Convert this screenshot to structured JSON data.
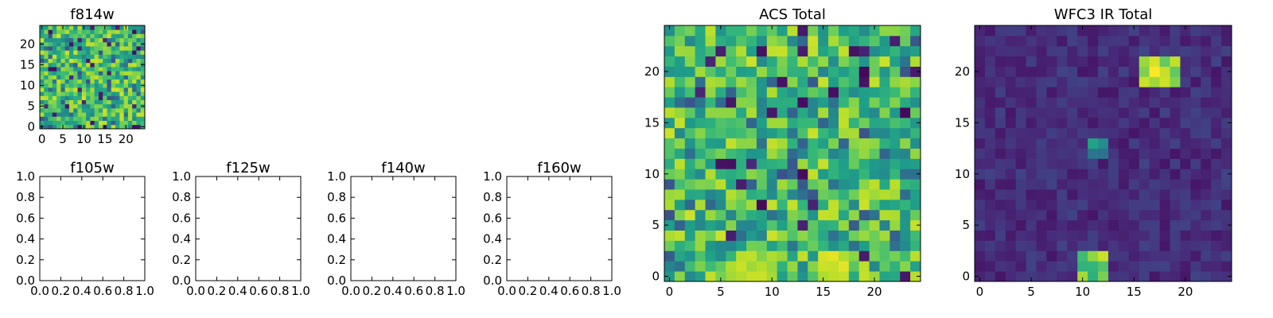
{
  "chart_data": [
    {
      "type": "heatmap",
      "title": "f814w",
      "colormap": "viridis",
      "shape": [
        25,
        25
      ],
      "xticks": [
        0,
        5,
        10,
        15,
        20
      ],
      "yticks": [
        0,
        5,
        10,
        15,
        20
      ],
      "content": "noise-dominated"
    },
    {
      "type": "heatmap",
      "title": "ACS Total",
      "colormap": "viridis",
      "shape": [
        25,
        25
      ],
      "xticks": [
        0,
        5,
        10,
        15,
        20
      ],
      "yticks": [
        0,
        5,
        10,
        15,
        20
      ],
      "content": "noise-dominated",
      "bright_regions": [
        {
          "x": [
            15,
            17
          ],
          "y": [
            0,
            2
          ],
          "level": 0.97
        },
        {
          "x": [
            6,
            10
          ],
          "y": [
            0,
            1
          ],
          "level": 0.93
        }
      ]
    },
    {
      "type": "heatmap",
      "title": "WFC3 IR Total",
      "colormap": "viridis",
      "shape": [
        25,
        25
      ],
      "xticks": [
        0,
        5,
        10,
        15,
        20
      ],
      "yticks": [
        0,
        5,
        10,
        15,
        20
      ],
      "content": "faint background with compact sources",
      "sources": [
        {
          "x": [
            10,
            12
          ],
          "y": [
            0,
            2
          ],
          "peak": 1.0
        },
        {
          "x": [
            16,
            19
          ],
          "y": [
            19,
            21
          ],
          "peak": 1.0
        },
        {
          "x": [
            11,
            12
          ],
          "y": [
            12,
            13
          ],
          "peak": 0.6
        }
      ]
    },
    {
      "type": "empty",
      "title": "f105w",
      "xlim": [
        0.0,
        1.0
      ],
      "ylim": [
        0.0,
        1.0
      ],
      "xticks": [
        "0.0",
        "0.2",
        "0.4",
        "0.6",
        "0.8",
        "1.0"
      ],
      "yticks": [
        "0.0",
        "0.2",
        "0.4",
        "0.6",
        "0.8",
        "1.0"
      ]
    },
    {
      "type": "empty",
      "title": "f125w",
      "xlim": [
        0.0,
        1.0
      ],
      "ylim": [
        0.0,
        1.0
      ],
      "xticks": [
        "0.0",
        "0.2",
        "0.4",
        "0.6",
        "0.8",
        "1.0"
      ],
      "yticks": [
        "0.0",
        "0.2",
        "0.4",
        "0.6",
        "0.8",
        "1.0"
      ]
    },
    {
      "type": "empty",
      "title": "f140w",
      "xlim": [
        0.0,
        1.0
      ],
      "ylim": [
        0.0,
        1.0
      ],
      "xticks": [
        "0.0",
        "0.2",
        "0.4",
        "0.6",
        "0.8",
        "1.0"
      ],
      "yticks": [
        "0.0",
        "0.2",
        "0.4",
        "0.6",
        "0.8",
        "1.0"
      ]
    },
    {
      "type": "empty",
      "title": "f160w",
      "xlim": [
        0.0,
        1.0
      ],
      "ylim": [
        0.0,
        1.0
      ],
      "xticks": [
        "0.0",
        "0.2",
        "0.4",
        "0.6",
        "0.8",
        "1.0"
      ],
      "yticks": [
        "0.0",
        "0.2",
        "0.4",
        "0.6",
        "0.8",
        "1.0"
      ]
    }
  ]
}
